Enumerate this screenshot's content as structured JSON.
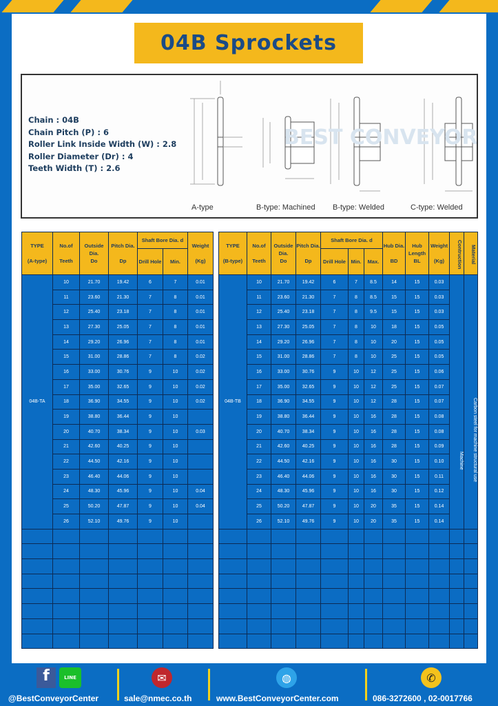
{
  "title": "04B Sprockets",
  "specs": [
    "Chain  : 04B",
    "Chain Pitch (P)  :  6",
    "Roller Link Inside Width (W)  :  2.8",
    "Roller Diameter (Dr)  : 4",
    "Teeth Width (T)  :  2.6"
  ],
  "diagram_captions": [
    "A-type",
    "B-type: Machined",
    "B-type: Welded",
    "C-type: Welded"
  ],
  "watermark": "BEST CONVEYOR CENTER",
  "colors": {
    "background": "#0b6dc3",
    "accent": "#f4b81c",
    "title_text": "#1b4b86"
  },
  "table_a": {
    "headers": {
      "type": "TYPE",
      "type_sub": "(A-type)",
      "teeth": "No.of",
      "teeth_sub": "Teeth",
      "do": "Outside",
      "do_sub": "Dia.",
      "do_sub2": "Do",
      "dp": "Pitch Dia.",
      "dp_sub": "Dp",
      "bore": "Shaft Bore Dia. d",
      "drill": "Drill Hole",
      "min": "Min.",
      "weight": "Weight",
      "weight_sub": "(Kg)"
    },
    "type_value": "04B-TA",
    "rows": [
      [
        "10",
        "21.70",
        "19.42",
        "6",
        "7",
        "0.01"
      ],
      [
        "11",
        "23.60",
        "21.30",
        "7",
        "8",
        "0.01"
      ],
      [
        "12",
        "25.40",
        "23.18",
        "7",
        "8",
        "0.01"
      ],
      [
        "13",
        "27.30",
        "25.05",
        "7",
        "8",
        "0.01"
      ],
      [
        "14",
        "29.20",
        "26.96",
        "7",
        "8",
        "0.01"
      ],
      [
        "15",
        "31.00",
        "28.86",
        "7",
        "8",
        "0.02"
      ],
      [
        "16",
        "33.00",
        "30.76",
        "9",
        "10",
        "0.02"
      ],
      [
        "17",
        "35.00",
        "32.65",
        "9",
        "10",
        "0.02"
      ],
      [
        "18",
        "36.90",
        "34.55",
        "9",
        "10",
        "0.02"
      ],
      [
        "19",
        "38.80",
        "36.44",
        "9",
        "10",
        ""
      ],
      [
        "20",
        "40.70",
        "38.34",
        "9",
        "10",
        "0.03"
      ],
      [
        "21",
        "42.60",
        "40.25",
        "9",
        "10",
        ""
      ],
      [
        "22",
        "44.50",
        "42.16",
        "9",
        "10",
        ""
      ],
      [
        "23",
        "46.40",
        "44.06",
        "9",
        "10",
        ""
      ],
      [
        "24",
        "48.30",
        "45.96",
        "9",
        "10",
        "0.04"
      ],
      [
        "25",
        "50.20",
        "47.87",
        "9",
        "10",
        "0.04"
      ],
      [
        "26",
        "52.10",
        "49.76",
        "9",
        "10",
        ""
      ]
    ]
  },
  "table_b": {
    "headers": {
      "type": "TYPE",
      "type_sub": "(B-type)",
      "teeth": "No.of",
      "teeth_sub": "Teeth",
      "do": "Outside",
      "do_sub": "Dia.",
      "do_sub2": "Do",
      "dp": "Pitch Dia.",
      "dp_sub": "Dp",
      "bore": "Shaft Bore Dia. d",
      "drill": "Drill Hole",
      "min": "Min.",
      "max": "Max.",
      "bd": "Hub Dia.",
      "bd_sub": "BD",
      "bl": "Hub",
      "bl_sub": "Length",
      "bl_sub2": "BL",
      "weight": "Weight",
      "weight_sub": "(Kg)",
      "construction": "Contruction",
      "material": "Material"
    },
    "type_value": "04B-TB",
    "construction_value": "Machine",
    "material_value": "Carbon steel  for  machine  structural use",
    "rows": [
      [
        "10",
        "21.70",
        "19.42",
        "6",
        "7",
        "8.5",
        "14",
        "15",
        "0.03"
      ],
      [
        "11",
        "23.60",
        "21.30",
        "7",
        "8",
        "8.5",
        "15",
        "15",
        "0.03"
      ],
      [
        "12",
        "25.40",
        "23.18",
        "7",
        "8",
        "9.5",
        "15",
        "15",
        "0.03"
      ],
      [
        "13",
        "27.30",
        "25.05",
        "7",
        "8",
        "10",
        "18",
        "15",
        "0.05"
      ],
      [
        "14",
        "29.20",
        "26.96",
        "7",
        "8",
        "10",
        "20",
        "15",
        "0.05"
      ],
      [
        "15",
        "31.00",
        "28.86",
        "7",
        "8",
        "10",
        "25",
        "15",
        "0.05"
      ],
      [
        "16",
        "33.00",
        "30.76",
        "9",
        "10",
        "12",
        "25",
        "15",
        "0.06"
      ],
      [
        "17",
        "35.00",
        "32.65",
        "9",
        "10",
        "12",
        "25",
        "15",
        "0.07"
      ],
      [
        "18",
        "36.90",
        "34.55",
        "9",
        "10",
        "12",
        "28",
        "15",
        "0.07"
      ],
      [
        "19",
        "38.80",
        "36.44",
        "9",
        "10",
        "16",
        "28",
        "15",
        "0.08"
      ],
      [
        "20",
        "40.70",
        "38.34",
        "9",
        "10",
        "16",
        "28",
        "15",
        "0.08"
      ],
      [
        "21",
        "42.60",
        "40.25",
        "9",
        "10",
        "16",
        "28",
        "15",
        "0.09"
      ],
      [
        "22",
        "44.50",
        "42.16",
        "9",
        "10",
        "16",
        "30",
        "15",
        "0.10"
      ],
      [
        "23",
        "46.40",
        "44.06",
        "9",
        "10",
        "16",
        "30",
        "15",
        "0.11"
      ],
      [
        "24",
        "48.30",
        "45.96",
        "9",
        "10",
        "16",
        "30",
        "15",
        "0.12"
      ],
      [
        "25",
        "50.20",
        "47.87",
        "9",
        "10",
        "20",
        "35",
        "15",
        "0.14"
      ],
      [
        "26",
        "52.10",
        "49.76",
        "9",
        "10",
        "20",
        "35",
        "15",
        "0.14"
      ]
    ]
  },
  "footer": {
    "social": "@BestConveyorCenter",
    "line_badge": "LINE",
    "email": "sale@nmec.co.th",
    "website": "www.BestConveyorCenter.com",
    "phone": "086-3272600 , 02-0017766"
  }
}
